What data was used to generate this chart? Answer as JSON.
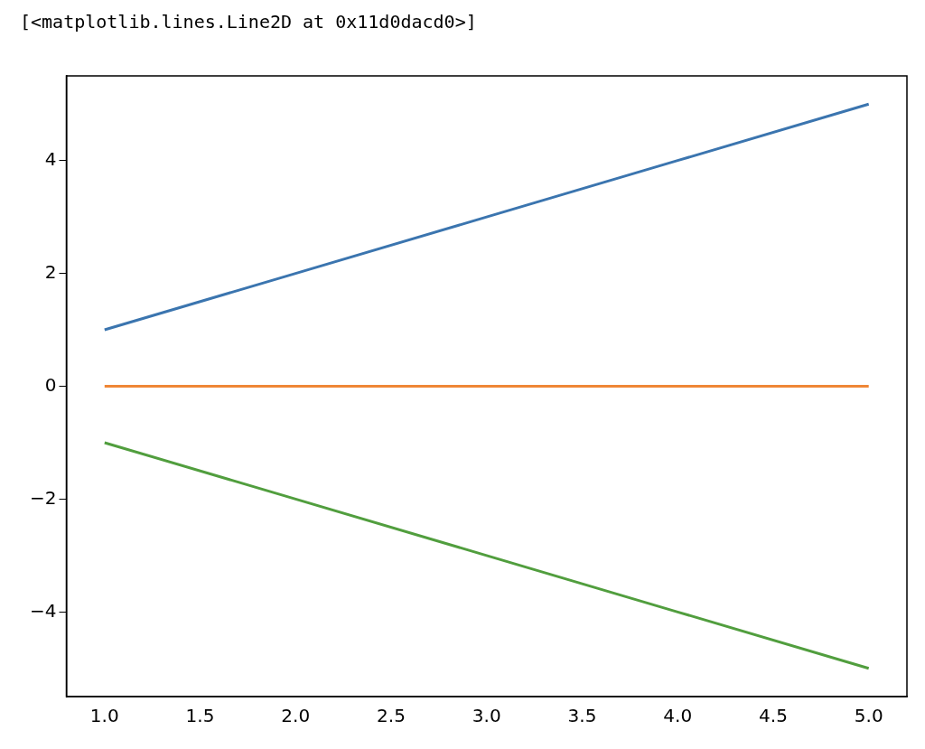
{
  "chart_data": {
    "type": "line",
    "annotations": [
      "[<matplotlib.lines.Line2D at 0x11d0dacd0>]"
    ],
    "x": [
      1,
      2,
      3,
      4,
      5
    ],
    "series": [
      {
        "color": "#3b75af",
        "values": [
          1,
          2,
          3,
          4,
          5
        ]
      },
      {
        "color": "#ef8636",
        "values": [
          0,
          0,
          0,
          0,
          0
        ]
      },
      {
        "color": "#519e3e",
        "values": [
          -1,
          -2,
          -3,
          -4,
          -5
        ]
      }
    ],
    "xlim": [
      0.8,
      5.2
    ],
    "xticks": [
      {
        "value": 1,
        "label": "1.0"
      },
      {
        "value": 1.5,
        "label": "1.5"
      },
      {
        "value": 2,
        "label": "2.0"
      },
      {
        "value": 2.5,
        "label": "2.5"
      },
      {
        "value": 3,
        "label": "3.0"
      },
      {
        "value": 3.5,
        "label": "3.5"
      },
      {
        "value": 4,
        "label": "4.0"
      },
      {
        "value": 4.5,
        "label": "4.5"
      },
      {
        "value": 5,
        "label": "5.0"
      }
    ],
    "ylim": [
      -5.5,
      5.5
    ],
    "yticks": [
      {
        "value": -4,
        "label": "−4"
      },
      {
        "value": -2,
        "label": "−2"
      },
      0,
      2,
      4
    ],
    "grid": false,
    "legend": false,
    "marker": "none",
    "line_style": "solid"
  }
}
